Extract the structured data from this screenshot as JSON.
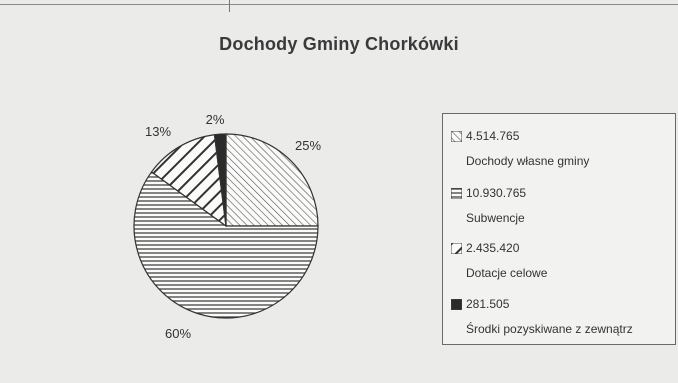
{
  "chart_data": {
    "type": "pie",
    "title": "Dochody Gminy Chorkówki",
    "slices": [
      {
        "value": "4.514.765",
        "label": "Dochody własne gminy",
        "percent": "25%",
        "share": 0.25,
        "pattern": "diagonal"
      },
      {
        "value": "10.930.765",
        "label": "Subwencje",
        "percent": "60%",
        "share": 0.6,
        "pattern": "horizontal"
      },
      {
        "value": "2.435.420",
        "label": "Dotacje celowe",
        "percent": "13%",
        "share": 0.13,
        "pattern": "diagonal-wide"
      },
      {
        "value": "281.505",
        "label": "Środki pozyskiwane z zewnątrz",
        "percent": "2%",
        "share": 0.02,
        "pattern": "solid"
      }
    ],
    "legend_position": "right"
  }
}
